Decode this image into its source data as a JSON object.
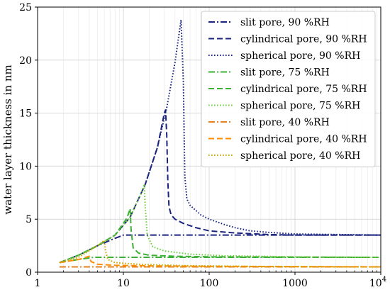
{
  "chart_data": {
    "type": "line",
    "title": "",
    "xlabel": "",
    "ylabel": "water layer thickness in nm",
    "xscale": "log",
    "xlim": [
      1,
      10000
    ],
    "ylim": [
      0,
      25
    ],
    "grid": true,
    "legend_position": "top-right",
    "x_ticks": [
      1,
      10,
      100,
      1000,
      10000
    ],
    "x_tick_labels": [
      "1",
      "10",
      "100",
      "1000",
      "10^4"
    ],
    "y_ticks": [
      0,
      5,
      10,
      15,
      20,
      25
    ],
    "y_tick_labels": [
      "0",
      "5",
      "10",
      "15",
      "20",
      "25"
    ],
    "series": [
      {
        "name": "slit pore, 90 %RH",
        "color": "#1a237e",
        "dash": "dashdot",
        "points": [
          [
            1.8,
            0.9
          ],
          [
            3,
            1.6
          ],
          [
            5,
            2.5
          ],
          [
            8,
            3.2
          ],
          [
            10,
            3.5
          ],
          [
            10000,
            3.5
          ]
        ]
      },
      {
        "name": "cylindrical pore, 90 %RH",
        "color": "#1a237e",
        "dash": "dashed",
        "points": [
          [
            1.8,
            0.9
          ],
          [
            3,
            1.6
          ],
          [
            5,
            2.5
          ],
          [
            8,
            3.5
          ],
          [
            12,
            5.2
          ],
          [
            18,
            8.3
          ],
          [
            25,
            11.8
          ],
          [
            30,
            15.0
          ],
          [
            31,
            15.3
          ],
          [
            32,
            13.0
          ],
          [
            33,
            8.5
          ],
          [
            34,
            6.2
          ],
          [
            36,
            5.4
          ],
          [
            40,
            5.0
          ],
          [
            50,
            4.6
          ],
          [
            70,
            4.2
          ],
          [
            100,
            3.9
          ],
          [
            200,
            3.7
          ],
          [
            500,
            3.55
          ],
          [
            1000,
            3.5
          ],
          [
            10000,
            3.5
          ]
        ]
      },
      {
        "name": "spherical pore, 90 %RH",
        "color": "#1a237e",
        "dash": "dotted",
        "points": [
          [
            1.8,
            0.9
          ],
          [
            3,
            1.6
          ],
          [
            5,
            2.5
          ],
          [
            8,
            3.5
          ],
          [
            12,
            5.2
          ],
          [
            18,
            8.3
          ],
          [
            25,
            11.8
          ],
          [
            32,
            15.5
          ],
          [
            40,
            19.8
          ],
          [
            47,
            23.8
          ],
          [
            50,
            18.0
          ],
          [
            52,
            9.0
          ],
          [
            55,
            6.9
          ],
          [
            60,
            6.3
          ],
          [
            80,
            5.4
          ],
          [
            100,
            5.0
          ],
          [
            150,
            4.5
          ],
          [
            200,
            4.2
          ],
          [
            300,
            3.9
          ],
          [
            500,
            3.75
          ],
          [
            1000,
            3.6
          ],
          [
            10000,
            3.5
          ]
        ]
      },
      {
        "name": "slit pore, 75 %RH",
        "color": "#3cb034",
        "dash": "dashdot",
        "points": [
          [
            1.8,
            0.9
          ],
          [
            3,
            1.2
          ],
          [
            4.5,
            1.4
          ],
          [
            10000,
            1.4
          ]
        ]
      },
      {
        "name": "cylindrical pore, 75 %RH",
        "color": "#3cb034",
        "dash": "dashed",
        "points": [
          [
            1.8,
            0.9
          ],
          [
            3,
            1.6
          ],
          [
            5,
            2.5
          ],
          [
            8,
            3.5
          ],
          [
            11,
            5.1
          ],
          [
            12,
            6.0
          ],
          [
            12.3,
            4.0
          ],
          [
            13,
            2.3
          ],
          [
            15,
            1.8
          ],
          [
            20,
            1.6
          ],
          [
            40,
            1.5
          ],
          [
            100,
            1.45
          ],
          [
            10000,
            1.4
          ]
        ]
      },
      {
        "name": "spherical pore, 75 %RH",
        "color": "#6fcd42",
        "dash": "dotted",
        "points": [
          [
            1.8,
            0.9
          ],
          [
            3,
            1.6
          ],
          [
            5,
            2.5
          ],
          [
            8,
            3.5
          ],
          [
            12,
            5.2
          ],
          [
            16,
            7.4
          ],
          [
            17.5,
            8.3
          ],
          [
            18,
            6.0
          ],
          [
            19,
            3.5
          ],
          [
            22,
            2.4
          ],
          [
            30,
            2.0
          ],
          [
            60,
            1.7
          ],
          [
            150,
            1.55
          ],
          [
            1000,
            1.45
          ],
          [
            10000,
            1.4
          ]
        ]
      },
      {
        "name": "slit pore, 40 %RH",
        "color": "#e6821e",
        "dash": "dashdot",
        "points": [
          [
            1.8,
            0.5
          ],
          [
            10000,
            0.5
          ]
        ]
      },
      {
        "name": "cylindrical pore, 40 %RH",
        "color": "#ff8c00",
        "dash": "dashed",
        "points": [
          [
            1.8,
            0.9
          ],
          [
            3,
            1.2
          ],
          [
            4,
            1.5
          ],
          [
            4.2,
            1.0
          ],
          [
            5,
            0.75
          ],
          [
            8,
            0.65
          ],
          [
            20,
            0.6
          ],
          [
            100,
            0.55
          ],
          [
            10000,
            0.5
          ]
        ]
      },
      {
        "name": "spherical pore, 40 %RH",
        "color": "#c9a800",
        "dash": "dotted",
        "points": [
          [
            1.8,
            0.9
          ],
          [
            3,
            1.4
          ],
          [
            5,
            2.5
          ],
          [
            6,
            3.0
          ],
          [
            6.2,
            2.0
          ],
          [
            6.6,
            1.2
          ],
          [
            8,
            0.9
          ],
          [
            15,
            0.75
          ],
          [
            50,
            0.62
          ],
          [
            300,
            0.55
          ],
          [
            10000,
            0.5
          ]
        ]
      }
    ]
  }
}
